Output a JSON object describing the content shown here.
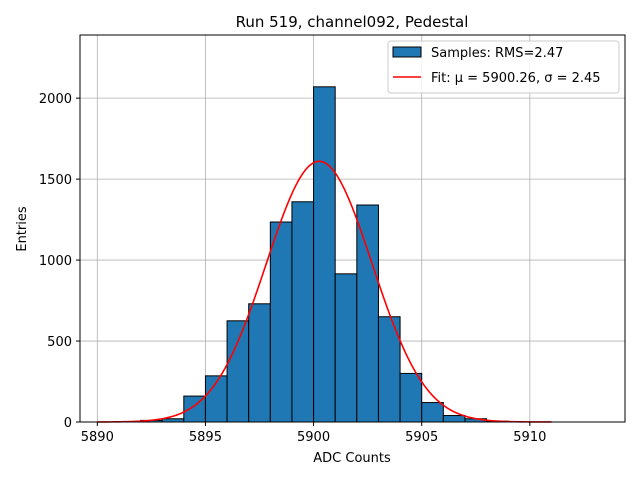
{
  "chart_data": {
    "type": "bar",
    "title": "Run 519, channel092, Pedestal",
    "xlabel": "ADC Counts",
    "ylabel": "Entries",
    "xlim": [
      5889.2,
      5914.4
    ],
    "ylim": [
      0,
      2390
    ],
    "xticks": [
      5890,
      5895,
      5900,
      5905,
      5910
    ],
    "yticks": [
      0,
      500,
      1000,
      1500,
      2000
    ],
    "grid": true,
    "legend_position": "top-right",
    "bin_edges": [
      5892,
      5893,
      5894,
      5895,
      5896,
      5897,
      5898,
      5899,
      5900,
      5901,
      5902,
      5903,
      5904,
      5905,
      5906,
      5907,
      5908,
      5909,
      5910
    ],
    "values": [
      10,
      20,
      160,
      285,
      625,
      730,
      1235,
      1360,
      2070,
      915,
      1340,
      650,
      300,
      120,
      40,
      20,
      5,
      0
    ],
    "series": [
      {
        "name": "Samples: RMS=2.47",
        "type": "histogram",
        "color": "#1f77b4",
        "edgecolor": "#000000"
      },
      {
        "name": "Fit: μ = 5900.26, σ = 2.45",
        "type": "line",
        "color": "#ff0000",
        "mu": 5900.26,
        "sigma": 2.45,
        "amplitude": 1610,
        "range": [
          5890,
          5911
        ]
      }
    ]
  }
}
